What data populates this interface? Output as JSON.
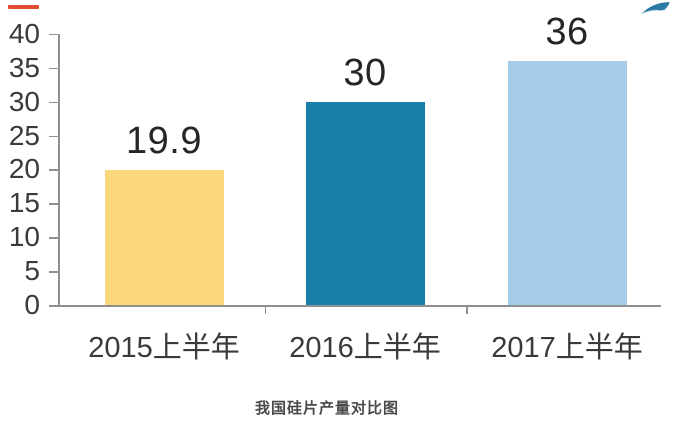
{
  "chart_data": {
    "type": "bar",
    "title": "我国硅片产量对比图",
    "categories": [
      "2015上半年",
      "2016上半年",
      "2017上半年"
    ],
    "values": [
      19.9,
      30,
      36
    ],
    "data_labels": [
      "19.9",
      "30",
      "36"
    ],
    "bar_colors": [
      "#FBD87C",
      "#1A80AA",
      "#A4CCE8"
    ],
    "xlabel": "",
    "ylabel": "",
    "ylim": [
      0,
      40
    ],
    "yticks": [
      0,
      5,
      10,
      15,
      20,
      25,
      30,
      35,
      40
    ],
    "grid": false,
    "legend": "none",
    "axis_color": "#8F8F8F",
    "tick_label_color": "#3A3A3A",
    "category_label_color": "#3A3A3A",
    "data_label_color": "#262626",
    "title_color": "#4A4A4A"
  },
  "decorations": {
    "red_dash_color": "#E14B31",
    "swoosh_color_dark": "#2A7AA4",
    "swoosh_color_light": "#8ABDD8"
  }
}
